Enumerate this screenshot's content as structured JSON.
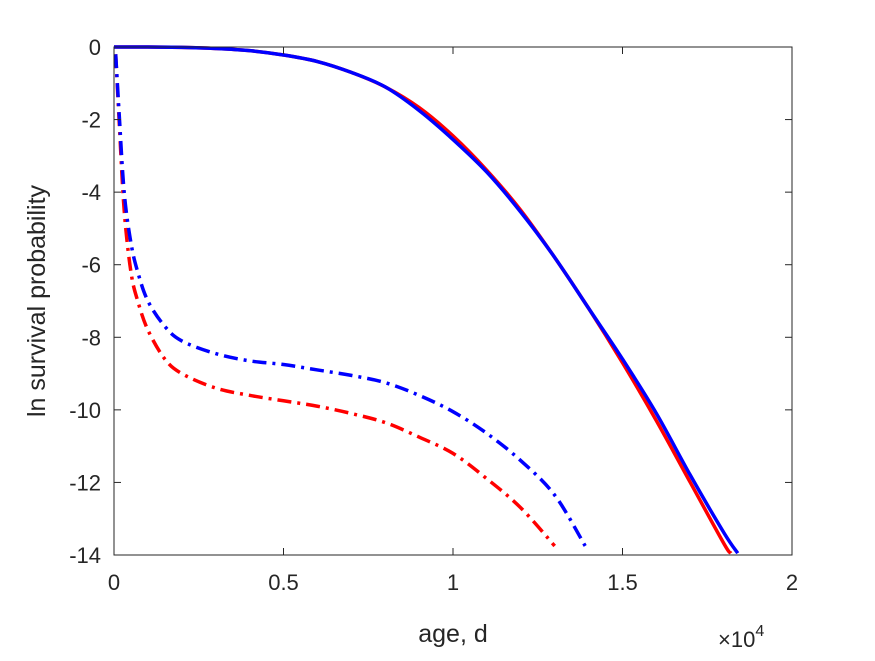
{
  "chart_data": {
    "type": "line",
    "title": "",
    "xlabel": "age, d",
    "ylabel": "ln survival probability",
    "x_exponent_label": "×10",
    "x_exponent_power": "4",
    "x_scale": 10000,
    "xlim": [
      0,
      20000
    ],
    "ylim": [
      -14,
      0
    ],
    "x_ticks": [
      0,
      5000,
      10000,
      15000,
      20000
    ],
    "x_tick_labels": [
      "0",
      "0.5",
      "1",
      "1.5",
      "2"
    ],
    "y_ticks": [
      0,
      -2,
      -4,
      -6,
      -8,
      -10,
      -12,
      -14
    ],
    "y_tick_labels": [
      "0",
      "-2",
      "-4",
      "-6",
      "-8",
      "-10",
      "-12",
      "-14"
    ],
    "grid": false,
    "legend": "none",
    "series": [
      {
        "color": "#ff0000",
        "line_style": "solid",
        "x": [
          0,
          1000,
          2000,
          3000,
          4000,
          5000,
          6000,
          7000,
          8000,
          9000,
          10000,
          11000,
          12000,
          13000,
          14000,
          15000,
          16000,
          17000,
          18000,
          18200
        ],
        "y": [
          0,
          0,
          -0.01,
          -0.04,
          -0.1,
          -0.22,
          -0.4,
          -0.7,
          -1.1,
          -1.67,
          -2.45,
          -3.4,
          -4.5,
          -5.8,
          -7.2,
          -8.7,
          -10.3,
          -12.0,
          -13.7,
          -13.95
        ]
      },
      {
        "color": "#0000ff",
        "line_style": "solid",
        "x": [
          0,
          1000,
          2000,
          3000,
          4000,
          5000,
          6000,
          7000,
          8000,
          9000,
          10000,
          11000,
          12000,
          13000,
          14000,
          15000,
          16000,
          17000,
          18000,
          18400
        ],
        "y": [
          0,
          0,
          -0.01,
          -0.04,
          -0.1,
          -0.22,
          -0.4,
          -0.7,
          -1.1,
          -1.75,
          -2.55,
          -3.45,
          -4.55,
          -5.8,
          -7.2,
          -8.6,
          -10.1,
          -11.8,
          -13.4,
          -13.95
        ]
      },
      {
        "color": "#ff0000",
        "line_style": "dashdot",
        "x": [
          50,
          150,
          300,
          500,
          700,
          1000,
          1500,
          2000,
          3000,
          4000,
          5000,
          6000,
          7000,
          8000,
          9000,
          10000,
          11000,
          12000,
          13000
        ],
        "y": [
          -0.2,
          -2.0,
          -4.5,
          -6.2,
          -7.0,
          -7.8,
          -8.6,
          -9.0,
          -9.4,
          -9.6,
          -9.75,
          -9.9,
          -10.1,
          -10.35,
          -10.75,
          -11.2,
          -11.9,
          -12.7,
          -13.75
        ]
      },
      {
        "color": "#0000ff",
        "line_style": "dashdot",
        "x": [
          50,
          150,
          300,
          500,
          700,
          1000,
          1500,
          2000,
          3000,
          4000,
          5000,
          6000,
          7000,
          8000,
          9000,
          10000,
          11000,
          12000,
          13000,
          13900
        ],
        "y": [
          -0.2,
          -1.8,
          -4.0,
          -5.4,
          -6.2,
          -7.0,
          -7.7,
          -8.1,
          -8.45,
          -8.65,
          -8.75,
          -8.9,
          -9.05,
          -9.25,
          -9.6,
          -10.05,
          -10.65,
          -11.4,
          -12.35,
          -13.75
        ]
      }
    ]
  }
}
